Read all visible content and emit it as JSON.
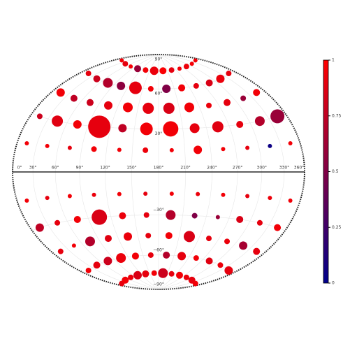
{
  "chart_data": {
    "type": "scatter",
    "projection": "hammer",
    "x": [
      15,
      45,
      75,
      105,
      135,
      165,
      195,
      225,
      255,
      285,
      315,
      345,
      15,
      45,
      75,
      105,
      135,
      165,
      195,
      225,
      255,
      285,
      315,
      345,
      15,
      45,
      75,
      105,
      135,
      165,
      195,
      225,
      255,
      285,
      315,
      345,
      15,
      45,
      75,
      105,
      135,
      165,
      195,
      225,
      255,
      285,
      315,
      345,
      15,
      45,
      75,
      105,
      135,
      165,
      195,
      225,
      255,
      285,
      315,
      345,
      15,
      45,
      75,
      105,
      135,
      165,
      195,
      225,
      255,
      285,
      315,
      345,
      15,
      45,
      75,
      105,
      135,
      165,
      195,
      225,
      255,
      285,
      315,
      345,
      15,
      45,
      75,
      105,
      135,
      165,
      195,
      225,
      255,
      285,
      315,
      345,
      15,
      45,
      75,
      105,
      135,
      165,
      195,
      225,
      255,
      285,
      315,
      345,
      15,
      45,
      75,
      105,
      135,
      165,
      195,
      225,
      255,
      285,
      315,
      345
    ],
    "y": [
      75,
      75,
      75,
      75,
      75,
      75,
      75,
      75,
      75,
      75,
      75,
      75,
      60,
      60,
      60,
      60,
      60,
      60,
      60,
      60,
      60,
      60,
      60,
      60,
      45,
      45,
      45,
      45,
      45,
      45,
      45,
      45,
      45,
      45,
      45,
      45,
      30,
      30,
      30,
      30,
      30,
      30,
      30,
      30,
      30,
      30,
      30,
      30,
      15,
      15,
      15,
      15,
      15,
      15,
      15,
      15,
      15,
      15,
      15,
      15,
      -15,
      -15,
      -15,
      -15,
      -15,
      -15,
      -15,
      -15,
      -15,
      -15,
      -15,
      -15,
      -30,
      -30,
      -30,
      -30,
      -30,
      -30,
      -30,
      -30,
      -30,
      -30,
      -30,
      -30,
      -45,
      -45,
      -45,
      -45,
      -45,
      -45,
      -45,
      -45,
      -45,
      -45,
      -45,
      -45,
      -60,
      -60,
      -60,
      -60,
      -60,
      -60,
      -60,
      -60,
      -60,
      -60,
      -60,
      -60,
      -75,
      -75,
      -75,
      -75,
      -75,
      -75,
      -75,
      -75,
      -75,
      -75,
      -75,
      -75
    ],
    "sizes": [
      3,
      4,
      3,
      5,
      4,
      6,
      5,
      4,
      3,
      4,
      3,
      3,
      4,
      5,
      7,
      6,
      9,
      4,
      6,
      5,
      4,
      5,
      6,
      4,
      6,
      5,
      5,
      6,
      7,
      8,
      8,
      7,
      4,
      5,
      4,
      5,
      4,
      8,
      6,
      16,
      6,
      9,
      11,
      7,
      8,
      5,
      7,
      10,
      3,
      3,
      3,
      4,
      3,
      4,
      3,
      6,
      3,
      3,
      3,
      3,
      3,
      3,
      3,
      3,
      3,
      3,
      3,
      3,
      3,
      3,
      3,
      3,
      6,
      4,
      5,
      11,
      5,
      4,
      7,
      4,
      3,
      5,
      4,
      5,
      4,
      3,
      7,
      5,
      6,
      4,
      5,
      8,
      4,
      4,
      6,
      5,
      4,
      5,
      6,
      7,
      5,
      4,
      5,
      6,
      4,
      5,
      4,
      6,
      4,
      5,
      4,
      6,
      5,
      4,
      7,
      4,
      5,
      4,
      5,
      4
    ],
    "values": [
      0.95,
      0.9,
      0.97,
      0.6,
      0.95,
      0.92,
      0.98,
      0.9,
      0.95,
      0.93,
      0.96,
      0.95,
      0.9,
      0.8,
      0.7,
      0.55,
      0.9,
      0.95,
      0.5,
      0.95,
      0.9,
      0.85,
      0.92,
      0.9,
      0.95,
      0.75,
      0.8,
      0.9,
      0.95,
      0.9,
      0.85,
      0.95,
      0.92,
      0.9,
      0.6,
      0.95,
      0.8,
      0.88,
      0.95,
      0.9,
      0.75,
      0.95,
      0.95,
      0.9,
      0.88,
      0.9,
      0.7,
      0.6,
      0.95,
      0.95,
      0.9,
      0.95,
      0.95,
      0.93,
      0.95,
      0.95,
      0.95,
      0.9,
      0.05,
      0.95,
      0.95,
      0.9,
      0.95,
      0.92,
      0.95,
      0.9,
      0.95,
      0.92,
      0.95,
      0.9,
      0.93,
      0.95,
      0.75,
      0.9,
      0.95,
      0.85,
      0.92,
      0.9,
      0.7,
      0.5,
      0.6,
      0.85,
      0.9,
      0.95,
      0.9,
      0.95,
      0.7,
      0.88,
      0.92,
      0.9,
      0.95,
      0.85,
      0.9,
      0.92,
      0.65,
      0.9,
      0.95,
      0.9,
      0.8,
      0.92,
      0.95,
      0.9,
      0.7,
      0.9,
      0.95,
      0.88,
      0.92,
      0.9,
      0.9,
      0.95,
      0.92,
      0.85,
      0.9,
      0.95,
      0.8,
      0.9,
      0.95,
      0.92,
      0.9,
      0.95
    ],
    "colorscale": [
      "#00008b",
      "#ff0000"
    ],
    "xlim": [
      0,
      360
    ],
    "ylim": [
      -90,
      90
    ],
    "xticks": [
      {
        "value": 0,
        "label": "0°"
      },
      {
        "value": 30,
        "label": "30°"
      },
      {
        "value": 60,
        "label": "60°"
      },
      {
        "value": 90,
        "label": "90°"
      },
      {
        "value": 120,
        "label": "120°"
      },
      {
        "value": 150,
        "label": "150°"
      },
      {
        "value": 180,
        "label": "180°"
      },
      {
        "value": 210,
        "label": "210°"
      },
      {
        "value": 240,
        "label": "240°"
      },
      {
        "value": 270,
        "label": "270°"
      },
      {
        "value": 300,
        "label": "300°"
      },
      {
        "value": 330,
        "label": "330°"
      },
      {
        "value": 360,
        "label": "360°"
      }
    ],
    "yticks": [
      {
        "value": 90,
        "label": "90°"
      },
      {
        "value": 60,
        "label": "60°"
      },
      {
        "value": 30,
        "label": "30°"
      },
      {
        "value": -30,
        "label": "−30°"
      },
      {
        "value": -60,
        "label": "−60°"
      },
      {
        "value": -90,
        "label": "−90°"
      }
    ],
    "clim": [
      0,
      1
    ],
    "cticks": [
      0,
      0.25,
      0.5,
      0.75,
      1
    ],
    "grid": true
  }
}
